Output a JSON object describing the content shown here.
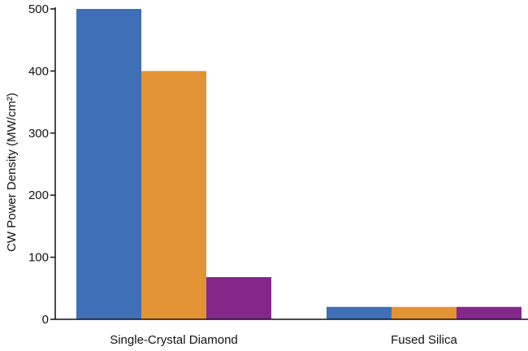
{
  "chart_data": {
    "type": "bar",
    "title": "",
    "xlabel": "",
    "ylabel": "CW Power Density (MW/cm²)",
    "categories": [
      "Single-Crystal Diamond",
      "Fused Silica"
    ],
    "series": [
      {
        "values": [
          500,
          20
        ],
        "color": "#3f6fb7"
      },
      {
        "values": [
          400,
          20
        ],
        "color": "#e29333"
      },
      {
        "values": [
          68,
          20
        ],
        "color": "#82288a"
      }
    ],
    "ylim": [
      0,
      500
    ],
    "yticks": [
      "0",
      "100",
      "200",
      "300",
      "400",
      "500"
    ],
    "grid": false,
    "legend": "none"
  }
}
